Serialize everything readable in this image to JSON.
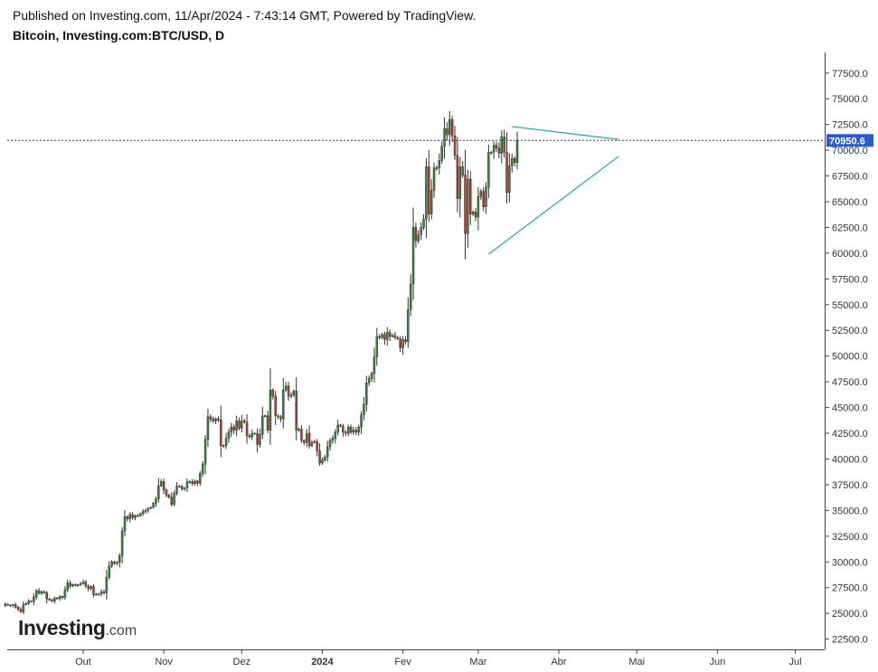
{
  "header": {
    "publish_line": "Published on Investing.com, 11/Apr/2024 - 7:43:14 GMT, Powered by TradingView.",
    "symbol_line": "Bitcoin, Investing.com:BTC/USD, D"
  },
  "logo": {
    "brand": "Investing",
    "suffix": ".com"
  },
  "colors": {
    "up": "#2e8b3a",
    "down": "#c0392b",
    "wick": "#333333",
    "trend": "#26a69a",
    "price_line": "#1a3fa8",
    "price_label_bg": "#2a5ccf"
  },
  "chart_data": {
    "type": "candlestick",
    "title": "Bitcoin, Investing.com:BTC/USD, D",
    "xlabel": "",
    "ylabel": "",
    "ylim": [
      21500,
      79500
    ],
    "y_ticks": [
      "22500.0",
      "25000.0",
      "27500.0",
      "30000.0",
      "32500.0",
      "35000.0",
      "37500.0",
      "40000.0",
      "42500.0",
      "45000.0",
      "47500.0",
      "50000.0",
      "52500.0",
      "55000.0",
      "57500.0",
      "60000.0",
      "62500.0",
      "65000.0",
      "67500.0",
      "70000.0",
      "72500.0",
      "75000.0",
      "77500.0"
    ],
    "x_ticks": [
      {
        "label": "Out",
        "date": "2023-10-01"
      },
      {
        "label": "Nov",
        "date": "2023-11-01"
      },
      {
        "label": "Dez",
        "date": "2023-12-01"
      },
      {
        "label": "2024",
        "date": "2024-01-01"
      },
      {
        "label": "Fev",
        "date": "2024-02-01"
      },
      {
        "label": "Mar",
        "date": "2024-03-01"
      },
      {
        "label": "Abr",
        "date": "2024-04-01"
      },
      {
        "label": "Mai",
        "date": "2024-05-01"
      },
      {
        "label": "Jun",
        "date": "2024-06-01"
      },
      {
        "label": "Jul",
        "date": "2024-07-01"
      }
    ],
    "last_price": 70950.6,
    "last_price_label": "70950.6",
    "start_date": "2023-09-01",
    "closes": [
      25900,
      25800,
      25750,
      25850,
      25600,
      25400,
      25150,
      25850,
      25950,
      26200,
      26150,
      26600,
      27200,
      26950,
      27100,
      27000,
      26400,
      26300,
      26200,
      26500,
      26450,
      26650,
      26550,
      27300,
      27950,
      27650,
      27800,
      27700,
      27800,
      27900,
      28050,
      27650,
      27400,
      27600,
      26800,
      26850,
      26900,
      27100,
      27000,
      28500,
      29600,
      30000,
      29850,
      29950,
      30600,
      33000,
      34400,
      34200,
      34600,
      34300,
      34500,
      34500,
      34700,
      34900,
      35000,
      35200,
      35300,
      35700,
      36100,
      37400,
      37800,
      37000,
      36500,
      36300,
      35600,
      36650,
      37350,
      37300,
      37100,
      37200,
      37800,
      37800,
      37600,
      37850,
      37650,
      38600,
      39500,
      41900,
      44100,
      43900,
      43700,
      43900,
      43800,
      41300,
      41300,
      42000,
      42600,
      43100,
      42800,
      43700,
      43000,
      43700,
      43600,
      42250,
      42150,
      42500,
      42500,
      41400,
      42400,
      44200,
      44200,
      42800,
      46700,
      46100,
      44200,
      44100,
      43900,
      46700,
      47100,
      46100,
      46200,
      46600,
      42800,
      42900,
      41800,
      41600,
      42500,
      41300,
      41600,
      41700,
      40800,
      39600,
      39900,
      40200,
      41200,
      41800,
      42000,
      42600,
      43300,
      43200,
      42600,
      42500,
      43100,
      42600,
      42800,
      42600,
      43100,
      44300,
      45300,
      47400,
      47800,
      48300,
      49900,
      51900,
      51800,
      52100,
      51600,
      52300,
      51900,
      52000,
      51800,
      51700,
      50800,
      51600,
      51400,
      54500,
      57000,
      62500,
      61200,
      61800,
      62500,
      63300,
      68400,
      63800,
      66100,
      68300,
      68300,
      69000,
      70400,
      72100,
      71500,
      73000,
      71400,
      69500,
      65300,
      68400,
      67600,
      61900,
      67200,
      63800,
      64000,
      63500,
      65500,
      66000,
      64500,
      66400,
      69800,
      69800,
      70500,
      70200,
      69700,
      71300,
      69800,
      65900,
      68500,
      69200,
      68800,
      70950
    ]
  }
}
